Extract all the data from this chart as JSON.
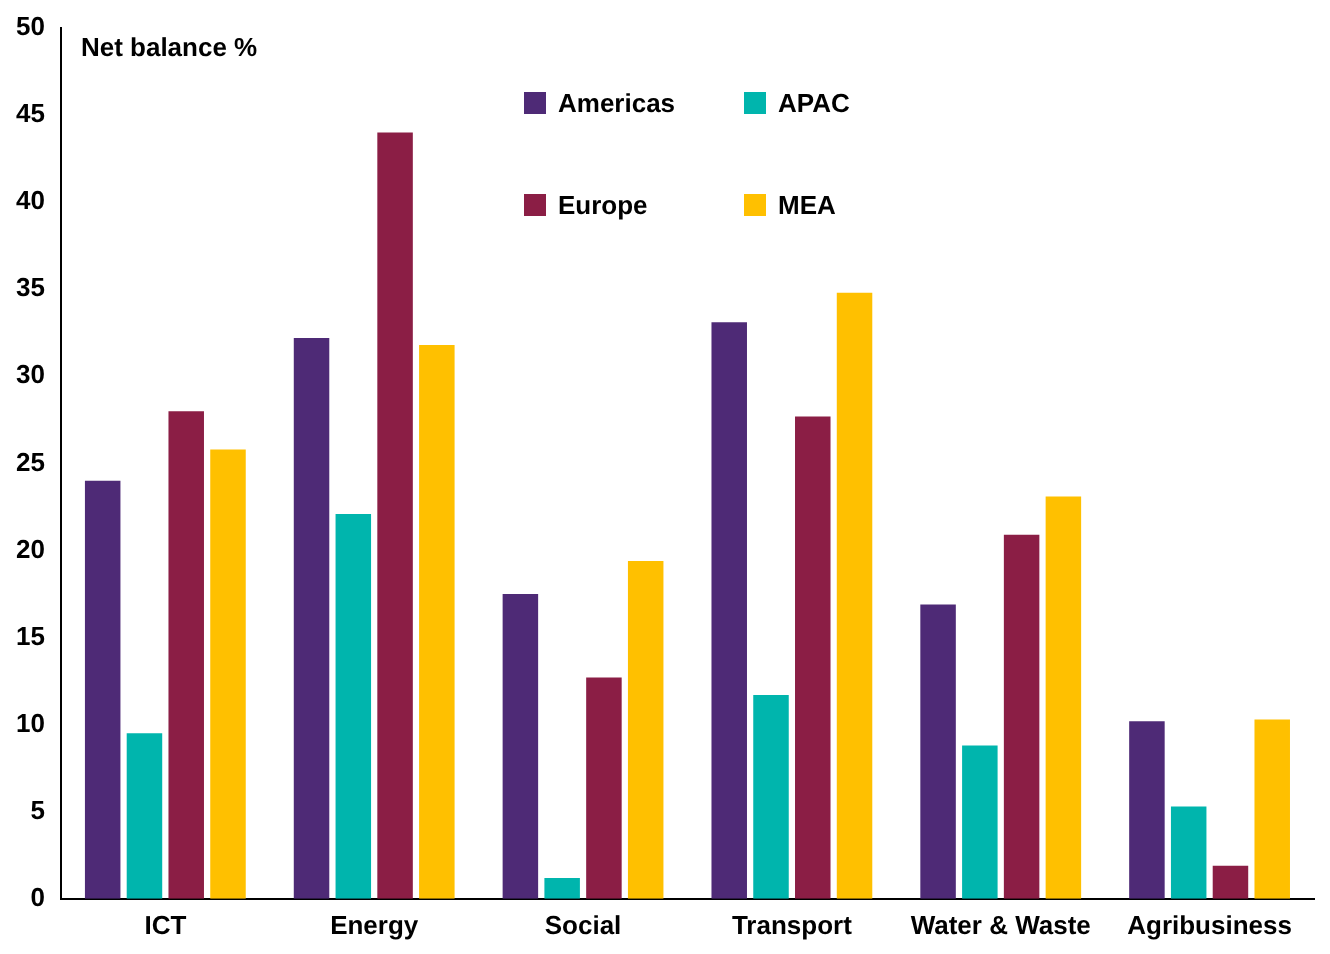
{
  "chart_data": {
    "type": "bar",
    "ylabel": "Net balance %",
    "categories": [
      "ICT",
      "Energy",
      "Social",
      "Transport",
      "Water & Waste",
      "Agribusiness"
    ],
    "series": [
      {
        "name": "Americas",
        "color": "#4e2a76",
        "values": [
          24,
          32.2,
          17.5,
          33.1,
          16.9,
          10.2
        ]
      },
      {
        "name": "APAC",
        "color": "#00b5ad",
        "values": [
          9.5,
          22.1,
          1.2,
          11.7,
          8.8,
          5.3
        ]
      },
      {
        "name": "Europe",
        "color": "#8b1e45",
        "values": [
          28,
          44,
          12.7,
          27.7,
          20.9,
          1.9
        ]
      },
      {
        "name": "MEA",
        "color": "#ffc000",
        "values": [
          25.8,
          31.8,
          19.4,
          34.8,
          23.1,
          10.3
        ]
      }
    ],
    "ylim": [
      0,
      50
    ],
    "yticks": [
      0,
      5,
      10,
      15,
      20,
      25,
      30,
      35,
      40,
      45,
      50
    ],
    "grid": false,
    "legend": "top"
  }
}
